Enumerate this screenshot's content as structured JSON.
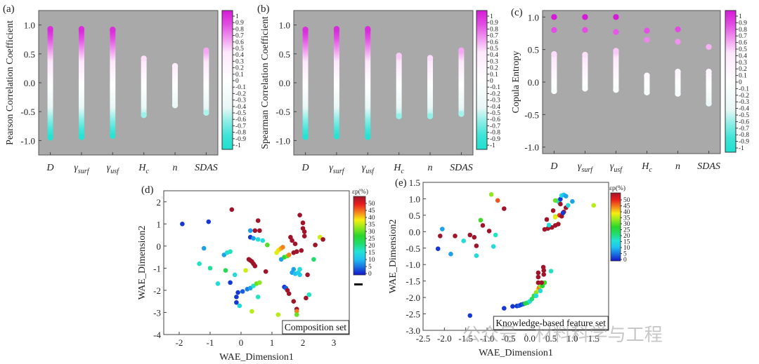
{
  "watermark": "公众号 · 材料科学与工程",
  "colorbar_corr": {
    "ticks": [
      "1",
      "0.9",
      "0.8",
      "0.7",
      "0.6",
      "0.5",
      "0.4",
      "0.3",
      "0.2",
      "0.1",
      "0",
      "-0.1",
      "-0.2",
      "-0.3",
      "-0.4",
      "-0.5",
      "-0.6",
      "-0.7",
      "-0.8",
      "-0.9",
      "-1"
    ],
    "range": [
      -1,
      1
    ],
    "colors": {
      "high": "#d41bd6",
      "mid": "#ffffff",
      "low": "#1fe0d0"
    }
  },
  "colorbar_strain": {
    "title": "εp(%)",
    "ticks": [
      "50",
      "45",
      "40",
      "35",
      "30",
      "25",
      "20",
      "15",
      "10",
      "5",
      "0"
    ],
    "range": [
      0,
      55
    ]
  },
  "chart_data": [
    {
      "id": "a",
      "panel_label": "(a)",
      "type": "scatter",
      "title": "",
      "xlabel": "",
      "ylabel": "Pearson Correlation Coefficient",
      "categories": [
        "D",
        "γsurf",
        "γusf",
        "Hc",
        "n",
        "SDAS"
      ],
      "category_labels": [
        {
          "main": "D",
          "sub": ""
        },
        {
          "main": "γ",
          "sub": "surf"
        },
        {
          "main": "γ",
          "sub": "usf"
        },
        {
          "main": "H",
          "sub": "c"
        },
        {
          "main": "n",
          "sub": ""
        },
        {
          "main": "SDAS",
          "sub": ""
        }
      ],
      "ylim": [
        -1.25,
        1.25
      ],
      "yticks": [
        "1.0",
        "0.5",
        "0.0",
        "-0.5",
        "-1.0"
      ],
      "ytick_values": [
        1.0,
        0.5,
        0.0,
        -0.5,
        -1.0
      ],
      "background": "#a9a9a9",
      "ranges": [
        {
          "category": "D",
          "min": -0.95,
          "max": 0.93
        },
        {
          "category": "γsurf",
          "min": -0.94,
          "max": 0.93
        },
        {
          "category": "γusf",
          "min": -0.92,
          "max": 0.92
        },
        {
          "category": "Hc",
          "min": -0.56,
          "max": 0.42
        },
        {
          "category": "n",
          "min": -0.39,
          "max": 0.29
        },
        {
          "category": "SDAS",
          "min": -0.52,
          "max": 0.56
        }
      ],
      "colorbar": "colorbar_corr"
    },
    {
      "id": "b",
      "panel_label": "(b)",
      "type": "scatter",
      "title": "",
      "xlabel": "",
      "ylabel": "Spearman Correlation Coefficient",
      "categories": [
        "D",
        "γsurf",
        "γusf",
        "Hc",
        "n",
        "SDAS"
      ],
      "category_labels": [
        {
          "main": "D",
          "sub": ""
        },
        {
          "main": "γ",
          "sub": "surf"
        },
        {
          "main": "γ",
          "sub": "usf"
        },
        {
          "main": "H",
          "sub": "c"
        },
        {
          "main": "n",
          "sub": ""
        },
        {
          "main": "SDAS",
          "sub": ""
        }
      ],
      "ylim": [
        -1.25,
        1.25
      ],
      "yticks": [
        "1.0",
        "0.5",
        "0.0",
        "-0.5",
        "-1.0"
      ],
      "ytick_values": [
        1.0,
        0.5,
        0.0,
        -0.5,
        -1.0
      ],
      "background": "#a9a9a9",
      "ranges": [
        {
          "category": "D",
          "min": -0.94,
          "max": 0.92
        },
        {
          "category": "γsurf",
          "min": -0.93,
          "max": 0.93
        },
        {
          "category": "γusf",
          "min": -0.94,
          "max": 0.93
        },
        {
          "category": "Hc",
          "min": -0.58,
          "max": 0.47
        },
        {
          "category": "n",
          "min": -0.58,
          "max": 0.43
        },
        {
          "category": "SDAS",
          "min": -0.54,
          "max": 0.56
        }
      ],
      "colorbar": "colorbar_corr"
    },
    {
      "id": "c",
      "panel_label": "(c)",
      "type": "scatter",
      "title": "",
      "xlabel": "",
      "ylabel": "Copula Entropy",
      "categories": [
        "D",
        "γsurf",
        "γusf",
        "Hc",
        "n",
        "SDAS"
      ],
      "category_labels": [
        {
          "main": "D",
          "sub": ""
        },
        {
          "main": "γ",
          "sub": "surf"
        },
        {
          "main": "γ",
          "sub": "usf"
        },
        {
          "main": "H",
          "sub": "c"
        },
        {
          "main": "n",
          "sub": ""
        },
        {
          "main": "SDAS",
          "sub": ""
        }
      ],
      "ylim": [
        -1.1,
        1.1
      ],
      "yticks": [
        "1.0",
        "0.5",
        "0.0",
        "-0.5",
        "-1.0"
      ],
      "ytick_values": [
        1.0,
        0.5,
        0.0,
        -0.5,
        -1.0
      ],
      "background": "#a9a9a9",
      "ranges": [
        {
          "category": "D",
          "min": -0.14,
          "max": 0.43
        },
        {
          "category": "γsurf",
          "min": -0.1,
          "max": 0.42
        },
        {
          "category": "γusf",
          "min": -0.12,
          "max": 0.48
        },
        {
          "category": "Hc",
          "min": -0.16,
          "max": 0.1
        },
        {
          "category": "n",
          "min": -0.18,
          "max": 0.16
        },
        {
          "category": "SDAS",
          "min": -0.33,
          "max": 0.12
        }
      ],
      "points": [
        {
          "category": "D",
          "y": 1.0
        },
        {
          "category": "D",
          "y": 0.8
        },
        {
          "category": "γsurf",
          "y": 1.0
        },
        {
          "category": "γsurf",
          "y": 0.8
        },
        {
          "category": "γusf",
          "y": 1.0
        },
        {
          "category": "γusf",
          "y": 0.77
        },
        {
          "category": "Hc",
          "y": 0.79
        },
        {
          "category": "Hc",
          "y": 0.65
        },
        {
          "category": "n",
          "y": 0.81
        },
        {
          "category": "n",
          "y": 0.62
        },
        {
          "category": "SDAS",
          "y": 0.54
        },
        {
          "category": "SDAS",
          "y": 0.16
        }
      ],
      "colorbar": "colorbar_corr"
    },
    {
      "id": "d",
      "panel_label": "(d)",
      "type": "scatter",
      "title": "",
      "xlabel": "WAE_Dimension1",
      "ylabel": "WAE_Dimension2",
      "xlim": [
        -2.5,
        3.5
      ],
      "ylim": [
        -4,
        2.5
      ],
      "xticks": [
        "-2",
        "-1",
        "0",
        "1",
        "2",
        "3"
      ],
      "xtick_values": [
        -2,
        -1,
        0,
        1,
        2,
        3
      ],
      "yticks": [
        "2",
        "1",
        "0",
        "-1",
        "-2",
        "-3",
        "-4"
      ],
      "ytick_values": [
        2,
        1,
        0,
        -1,
        -2,
        -3,
        -4
      ],
      "inset_label": "Composition set",
      "colorbar": "colorbar_strain",
      "points": [
        [
          -1.9,
          1.0,
          2
        ],
        [
          -1.05,
          1.1,
          2
        ],
        [
          -0.3,
          1.65,
          52
        ],
        [
          -1.2,
          -0.1,
          8
        ],
        [
          -1.35,
          -0.8,
          16
        ],
        [
          -1.0,
          -1.0,
          18
        ],
        [
          -0.55,
          -0.4,
          8
        ],
        [
          -0.45,
          -0.3,
          14
        ],
        [
          -0.35,
          -0.25,
          16
        ],
        [
          -0.5,
          -1.1,
          22
        ],
        [
          -0.2,
          -1.3,
          14
        ],
        [
          -0.75,
          -1.7,
          14
        ],
        [
          -0.35,
          -1.65,
          2
        ],
        [
          0.15,
          -1.1,
          33
        ],
        [
          -0.15,
          -2.3,
          2
        ],
        [
          -0.15,
          -2.55,
          2
        ],
        [
          -0.05,
          -2.7,
          13
        ],
        [
          -0.1,
          -2.1,
          2
        ],
        [
          0.05,
          -2.05,
          4
        ],
        [
          0.2,
          -1.95,
          6
        ],
        [
          0.3,
          -1.9,
          8
        ],
        [
          0.4,
          -1.8,
          16
        ],
        [
          0.5,
          -1.7,
          28
        ],
        [
          0.6,
          -1.65,
          30
        ],
        [
          0.35,
          -2.95,
          32
        ],
        [
          0.55,
          -2.3,
          16
        ],
        [
          0.3,
          0.7,
          8
        ],
        [
          0.45,
          0.7,
          52
        ],
        [
          0.6,
          0.7,
          52
        ],
        [
          0.55,
          1.15,
          52
        ],
        [
          0.3,
          0.4,
          2
        ],
        [
          0.4,
          0.35,
          8
        ],
        [
          0.55,
          0.3,
          14
        ],
        [
          0.7,
          0.25,
          14
        ],
        [
          0.85,
          0.05,
          27
        ],
        [
          0.25,
          -0.6,
          52
        ],
        [
          0.3,
          -0.65,
          52
        ],
        [
          0.35,
          -0.7,
          52
        ],
        [
          0.4,
          -0.8,
          52
        ],
        [
          0.45,
          -0.9,
          52
        ],
        [
          0.8,
          -1.15,
          52
        ],
        [
          1.15,
          -0.3,
          34
        ],
        [
          1.2,
          -0.2,
          34
        ],
        [
          1.25,
          -0.15,
          36
        ],
        [
          1.3,
          -0.1,
          38
        ],
        [
          1.35,
          -0.05,
          40
        ],
        [
          1.3,
          -0.6,
          8
        ],
        [
          1.4,
          -0.5,
          24
        ],
        [
          1.5,
          -0.45,
          28
        ],
        [
          1.55,
          -0.4,
          40
        ],
        [
          1.7,
          -0.3,
          52
        ],
        [
          1.8,
          -0.25,
          52
        ],
        [
          1.95,
          -0.2,
          52
        ],
        [
          1.6,
          0.4,
          52
        ],
        [
          1.65,
          0.25,
          52
        ],
        [
          1.75,
          0.1,
          52
        ],
        [
          1.9,
          1.4,
          52
        ],
        [
          2.0,
          1.05,
          52
        ],
        [
          2.0,
          0.8,
          52
        ],
        [
          2.05,
          0.65,
          52
        ],
        [
          2.05,
          0.45,
          52
        ],
        [
          2.55,
          0.4,
          33
        ],
        [
          2.65,
          0.3,
          52
        ],
        [
          2.4,
          0.05,
          52
        ],
        [
          2.35,
          -0.6,
          20
        ],
        [
          1.7,
          -1.05,
          8
        ],
        [
          1.65,
          -1.2,
          8
        ],
        [
          1.75,
          -1.25,
          10
        ],
        [
          1.85,
          -1.2,
          12
        ],
        [
          1.9,
          -1.05,
          14
        ],
        [
          1.9,
          -1.3,
          12
        ],
        [
          2.15,
          -1.3,
          52
        ],
        [
          1.4,
          -1.85,
          2
        ],
        [
          1.45,
          -1.9,
          4
        ],
        [
          1.5,
          -2.0,
          52
        ],
        [
          1.55,
          -2.15,
          52
        ],
        [
          1.7,
          -2.5,
          52
        ],
        [
          2.1,
          -2.35,
          52
        ],
        [
          2.2,
          -2.2,
          16
        ],
        [
          1.8,
          -2.85,
          52
        ],
        [
          1.8,
          -2.95,
          40
        ],
        [
          1.8,
          -3.1,
          28
        ],
        [
          1.2,
          -3.1,
          32
        ]
      ],
      "point_format": [
        "x",
        "y",
        "strain_percent"
      ]
    },
    {
      "id": "e",
      "panel_label": "(e)",
      "type": "scatter",
      "title": "",
      "xlabel": "WAE_Dimension1",
      "ylabel": "WAE_Dimension2",
      "xlim": [
        -2.5,
        1.85
      ],
      "ylim": [
        -3.0,
        1.5
      ],
      "xticks": [
        "-2.5",
        "-2.0",
        "-1.5",
        "-1.0",
        "-0.5",
        "0.0",
        "0.5",
        "1.0",
        "1.5"
      ],
      "xtick_values": [
        -2.5,
        -2.0,
        -1.5,
        -1.0,
        -0.5,
        0.0,
        0.5,
        1.0,
        1.5
      ],
      "yticks": [
        "1.5",
        "1.0",
        "0.5",
        "0.0",
        "-0.5",
        "-1.0",
        "-1.5",
        "-2.0",
        "-2.5",
        "-3.0"
      ],
      "ytick_values": [
        1.5,
        1.0,
        0.5,
        0.0,
        -0.5,
        -1.0,
        -1.5,
        -2.0,
        -2.5,
        -3.0
      ],
      "inset_label": "Knowledge-based feature set",
      "colorbar": "colorbar_strain",
      "points": [
        [
          -2.15,
          -0.52,
          2
        ],
        [
          -2.05,
          0.08,
          8
        ],
        [
          -2.1,
          -0.13,
          52
        ],
        [
          -1.85,
          -0.68,
          8
        ],
        [
          -1.75,
          -0.13,
          52
        ],
        [
          -1.55,
          -0.28,
          14
        ],
        [
          -1.4,
          -0.1,
          52
        ],
        [
          -1.3,
          -0.17,
          52
        ],
        [
          -1.25,
          -0.43,
          52
        ],
        [
          -1.25,
          -0.73,
          14
        ],
        [
          -1.15,
          0.35,
          26
        ],
        [
          -1.1,
          0.19,
          52
        ],
        [
          -0.95,
          0.02,
          52
        ],
        [
          -0.85,
          -0.45,
          14
        ],
        [
          -0.8,
          -0.1,
          16
        ],
        [
          -0.9,
          1.13,
          30
        ],
        [
          -0.75,
          0.95,
          42
        ],
        [
          -0.6,
          0.7,
          52
        ],
        [
          -1.4,
          -2.55,
          2
        ],
        [
          -0.6,
          -2.33,
          2
        ],
        [
          -0.4,
          -2.27,
          2
        ],
        [
          -0.3,
          -2.26,
          2
        ],
        [
          -0.25,
          -2.25,
          4
        ],
        [
          -0.2,
          -2.22,
          2
        ],
        [
          -0.15,
          -2.2,
          4
        ],
        [
          -0.1,
          -2.18,
          24
        ],
        [
          -0.05,
          -2.16,
          22
        ],
        [
          0.0,
          -2.12,
          14
        ],
        [
          0.05,
          -2.05,
          20
        ],
        [
          0.1,
          -1.95,
          26
        ],
        [
          0.15,
          -1.85,
          30
        ],
        [
          0.2,
          -1.75,
          36
        ],
        [
          0.22,
          -1.7,
          40
        ],
        [
          0.25,
          -1.65,
          30
        ],
        [
          0.15,
          -1.95,
          14
        ],
        [
          0.25,
          -1.8,
          14
        ],
        [
          0.3,
          -1.65,
          24
        ],
        [
          0.35,
          -1.55,
          26
        ],
        [
          0.28,
          -1.55,
          52
        ],
        [
          0.2,
          -1.55,
          52
        ],
        [
          0.2,
          -1.38,
          52
        ],
        [
          0.2,
          -1.25,
          52
        ],
        [
          0.32,
          -1.08,
          52
        ],
        [
          0.33,
          -1.18,
          52
        ],
        [
          0.33,
          -1.3,
          52
        ],
        [
          0.5,
          -1.2,
          16
        ],
        [
          0.35,
          0.07,
          52
        ],
        [
          0.43,
          0.1,
          52
        ],
        [
          0.52,
          0.13,
          52
        ],
        [
          0.6,
          0.19,
          52
        ],
        [
          0.67,
          0.23,
          52
        ],
        [
          0.4,
          0.37,
          52
        ],
        [
          0.45,
          0.2,
          14
        ],
        [
          0.55,
          0.64,
          52
        ],
        [
          0.6,
          0.46,
          30
        ],
        [
          0.6,
          0.44,
          34
        ],
        [
          0.7,
          0.5,
          44
        ],
        [
          0.75,
          0.47,
          52
        ],
        [
          0.8,
          0.6,
          52
        ],
        [
          0.85,
          0.73,
          52
        ],
        [
          0.78,
          0.57,
          2
        ],
        [
          0.65,
          0.94,
          14
        ],
        [
          0.6,
          0.95,
          28
        ],
        [
          0.7,
          0.88,
          16
        ],
        [
          0.72,
          0.84,
          52
        ],
        [
          0.72,
          0.99,
          2
        ],
        [
          0.75,
          1.1,
          14
        ],
        [
          0.8,
          1.12,
          10
        ],
        [
          0.85,
          1.08,
          8
        ],
        [
          0.9,
          0.8,
          14
        ],
        [
          1.0,
          0.92,
          8
        ],
        [
          1.5,
          0.8,
          32
        ]
      ],
      "point_format": [
        "x",
        "y",
        "strain_percent"
      ]
    }
  ]
}
